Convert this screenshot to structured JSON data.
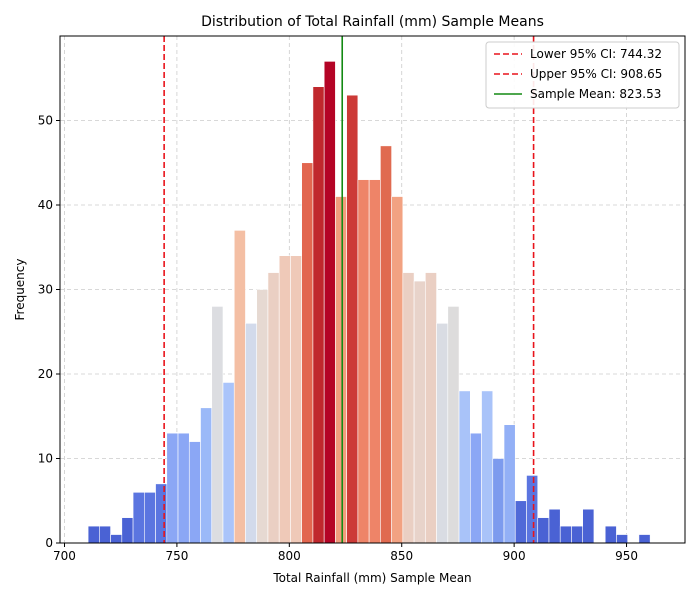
{
  "chart_data": {
    "type": "bar",
    "title": "Distribution of Total Rainfall (mm) Sample Means",
    "xlabel": "Total Rainfall (mm) Sample Mean",
    "ylabel": "Frequency",
    "xlim": [
      698,
      976
    ],
    "ylim": [
      0,
      60
    ],
    "xticks": [
      700,
      750,
      800,
      850,
      900,
      950
    ],
    "yticks": [
      0,
      10,
      20,
      30,
      40,
      50
    ],
    "grid": true,
    "bin_width": 5.0,
    "bins": [
      {
        "x": 713.0,
        "count": 2,
        "color": "#4a62d4"
      },
      {
        "x": 718.0,
        "count": 2,
        "color": "#4a62d4"
      },
      {
        "x": 723.0,
        "count": 1,
        "color": "#4a62d4"
      },
      {
        "x": 728.0,
        "count": 3,
        "color": "#4a62d4"
      },
      {
        "x": 733.0,
        "count": 6,
        "color": "#5b75e0"
      },
      {
        "x": 738.0,
        "count": 6,
        "color": "#5b75e0"
      },
      {
        "x": 743.0,
        "count": 7,
        "color": "#5b75e0"
      },
      {
        "x": 748.0,
        "count": 13,
        "color": "#8ba7f5"
      },
      {
        "x": 753.0,
        "count": 13,
        "color": "#8ba7f5"
      },
      {
        "x": 758.0,
        "count": 12,
        "color": "#8ba7f5"
      },
      {
        "x": 763.0,
        "count": 16,
        "color": "#9bb9f8"
      },
      {
        "x": 768.0,
        "count": 28,
        "color": "#dcdde1"
      },
      {
        "x": 773.0,
        "count": 19,
        "color": "#aac4fa"
      },
      {
        "x": 778.0,
        "count": 37,
        "color": "#f4bfa4"
      },
      {
        "x": 783.0,
        "count": 26,
        "color": "#d2daeb"
      },
      {
        "x": 788.0,
        "count": 30,
        "color": "#e6d9d2"
      },
      {
        "x": 793.0,
        "count": 32,
        "color": "#eacfc3"
      },
      {
        "x": 798.0,
        "count": 34,
        "color": "#efc9b8"
      },
      {
        "x": 803.0,
        "count": 34,
        "color": "#efc9b8"
      },
      {
        "x": 808.0,
        "count": 45,
        "color": "#e2664f"
      },
      {
        "x": 813.0,
        "count": 54,
        "color": "#c0282d"
      },
      {
        "x": 818.0,
        "count": 57,
        "color": "#b40426"
      },
      {
        "x": 823.0,
        "count": 41,
        "color": "#f09c7d"
      },
      {
        "x": 828.0,
        "count": 53,
        "color": "#cc3a37"
      },
      {
        "x": 833.0,
        "count": 43,
        "color": "#ee8468"
      },
      {
        "x": 838.0,
        "count": 43,
        "color": "#ee8468"
      },
      {
        "x": 843.0,
        "count": 47,
        "color": "#e06a50"
      },
      {
        "x": 848.0,
        "count": 41,
        "color": "#f2a282"
      },
      {
        "x": 853.0,
        "count": 32,
        "color": "#eacfc3"
      },
      {
        "x": 858.0,
        "count": 31,
        "color": "#e8d3ca"
      },
      {
        "x": 863.0,
        "count": 32,
        "color": "#eacfc3"
      },
      {
        "x": 868.0,
        "count": 26,
        "color": "#d9dce3"
      },
      {
        "x": 873.0,
        "count": 28,
        "color": "#dddcdc"
      },
      {
        "x": 878.0,
        "count": 18,
        "color": "#a9c3f9"
      },
      {
        "x": 883.0,
        "count": 13,
        "color": "#8ba7f5"
      },
      {
        "x": 888.0,
        "count": 18,
        "color": "#a9c3f9"
      },
      {
        "x": 893.0,
        "count": 10,
        "color": "#7d9bee"
      },
      {
        "x": 898.0,
        "count": 14,
        "color": "#93b0f6"
      },
      {
        "x": 903.0,
        "count": 5,
        "color": "#5069d8"
      },
      {
        "x": 908.0,
        "count": 8,
        "color": "#5b75e0"
      },
      {
        "x": 913.0,
        "count": 3,
        "color": "#4a62d4"
      },
      {
        "x": 918.0,
        "count": 4,
        "color": "#4a62d4"
      },
      {
        "x": 923.0,
        "count": 2,
        "color": "#4a62d4"
      },
      {
        "x": 928.0,
        "count": 2,
        "color": "#4a62d4"
      },
      {
        "x": 933.0,
        "count": 4,
        "color": "#4a62d4"
      },
      {
        "x": 943.0,
        "count": 2,
        "color": "#4a62d4"
      },
      {
        "x": 948.0,
        "count": 1,
        "color": "#4a62d4"
      },
      {
        "x": 958.0,
        "count": 1,
        "color": "#4a62d4"
      }
    ],
    "lines": [
      {
        "label": "Lower 95% CI: 744.32",
        "x": 744.32,
        "color": "#e8141b",
        "style": "dashed"
      },
      {
        "label": "Upper 95% CI: 908.65",
        "x": 908.65,
        "color": "#e8141b",
        "style": "dashed"
      },
      {
        "label": "Sample Mean: 823.53",
        "x": 823.53,
        "color": "#138a13",
        "style": "solid"
      }
    ],
    "legend_position": "top-right"
  }
}
